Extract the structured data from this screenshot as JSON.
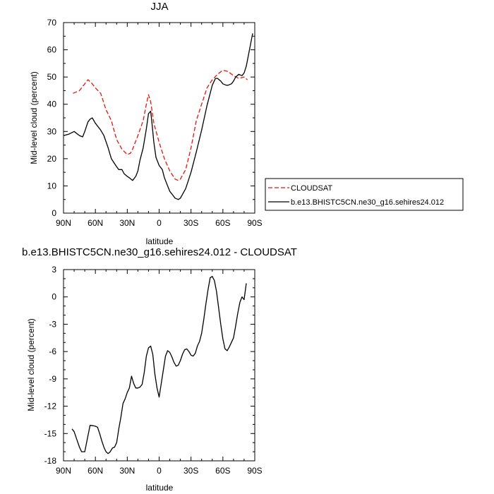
{
  "chart_data": [
    {
      "type": "line",
      "title": "JJA",
      "xlabel": "latitude",
      "ylabel": "Mid-level cloud (percent)",
      "xlim": [
        90,
        -90
      ],
      "ylim": [
        0,
        70
      ],
      "xticks": [
        90,
        60,
        30,
        0,
        -30,
        -60,
        -90
      ],
      "xtick_labels": [
        "90N",
        "60N",
        "30N",
        "0",
        "30S",
        "60S",
        "90S"
      ],
      "yticks": [
        0,
        10,
        20,
        30,
        40,
        50,
        60,
        70
      ],
      "ytick_labels": [
        "0",
        "10",
        "20",
        "30",
        "40",
        "50",
        "60",
        "70"
      ],
      "legend_position": "right",
      "series": [
        {
          "name": "CLOUDSAT",
          "color": "#e8140a",
          "dash": "dashed",
          "x": [
            81,
            75,
            70,
            67,
            64,
            60,
            55,
            50,
            45,
            40,
            35,
            30,
            27,
            25,
            20,
            15,
            12,
            10,
            8,
            5,
            0,
            -5,
            -10,
            -15,
            -18,
            -20,
            -25,
            -30,
            -35,
            -40,
            -45,
            -50,
            -55,
            -60,
            -65,
            -70,
            -75,
            -80,
            -83
          ],
          "y": [
            44,
            45,
            47.5,
            49,
            48,
            46,
            44,
            38,
            34,
            27,
            23.5,
            21.5,
            22,
            23.5,
            28.5,
            34,
            40,
            43.5,
            41,
            33,
            26,
            20,
            15.5,
            12.5,
            12,
            12.5,
            16,
            24,
            34,
            40,
            46,
            49,
            51,
            52.5,
            52,
            50.5,
            49.5,
            50,
            49
          ]
        },
        {
          "name": "b.e13.BHISTC5CN.ne30_g16.sehires24.012",
          "color": "#000000",
          "dash": "solid",
          "x": [
            90,
            85,
            80,
            75,
            72,
            70,
            67,
            65,
            63,
            60,
            55,
            52,
            48,
            45,
            40,
            38,
            35,
            33,
            30,
            28,
            25,
            22,
            20,
            18,
            15,
            12,
            10,
            8,
            7,
            5,
            3,
            0,
            -3,
            -5,
            -8,
            -10,
            -13,
            -15,
            -18,
            -20,
            -25,
            -30,
            -35,
            -40,
            -45,
            -48,
            -50,
            -53,
            -55,
            -58,
            -60,
            -63,
            -65,
            -68,
            -70,
            -72,
            -75,
            -78,
            -80,
            -82,
            -84,
            -86,
            -88
          ],
          "y": [
            28.5,
            29,
            30,
            28.5,
            28,
            30,
            33.5,
            34.5,
            35,
            33,
            30.5,
            28.5,
            24,
            20,
            17,
            16,
            16,
            14.5,
            13.5,
            13,
            12,
            13.5,
            15.5,
            19.5,
            24,
            31,
            36.5,
            37.5,
            34,
            26,
            20.5,
            17.5,
            16,
            13,
            10,
            8,
            6.5,
            5.5,
            5,
            5.5,
            9,
            15,
            22.5,
            30.5,
            39.5,
            44,
            47,
            49.5,
            49.5,
            48.5,
            47.5,
            47,
            47,
            47.5,
            48.5,
            50,
            51,
            50.5,
            51.5,
            54,
            58,
            62,
            66
          ]
        }
      ]
    },
    {
      "type": "line",
      "title": "b.e13.BHISTC5CN.ne30_g16.sehires24.012 - CLOUDSAT",
      "xlabel": "latitude",
      "ylabel": "Mid-level cloud (percent)",
      "xlim": [
        90,
        -90
      ],
      "ylim": [
        -18,
        3
      ],
      "xticks": [
        90,
        60,
        30,
        0,
        -30,
        -60,
        -90
      ],
      "xtick_labels": [
        "90N",
        "60N",
        "30N",
        "0",
        "30S",
        "60S",
        "90S"
      ],
      "yticks": [
        3,
        0,
        -3,
        -6,
        -9,
        -12,
        -15,
        -18
      ],
      "ytick_labels": [
        "3",
        "0",
        "-3",
        "-6",
        "-9",
        "-12",
        "-15",
        "-18"
      ],
      "series": [
        {
          "color": "#000000",
          "dash": "solid",
          "x": [
            82,
            80,
            78,
            75,
            73,
            70,
            65,
            62,
            60,
            58,
            56,
            54,
            52,
            50,
            48,
            46,
            44,
            42,
            40,
            38,
            36,
            34,
            32,
            30,
            28,
            26,
            24,
            22,
            20,
            18,
            16,
            14,
            12,
            10,
            8,
            6,
            4,
            2,
            0,
            -2,
            -4,
            -6,
            -8,
            -10,
            -12,
            -14,
            -16,
            -18,
            -20,
            -22,
            -24,
            -26,
            -28,
            -30,
            -32,
            -34,
            -36,
            -38,
            -40,
            -42,
            -44,
            -46,
            -48,
            -50,
            -52,
            -54,
            -56,
            -58,
            -60,
            -62,
            -64,
            -66,
            -68,
            -70,
            -72,
            -74,
            -76,
            -78,
            -80,
            -82
          ],
          "y": [
            -14.5,
            -14.8,
            -15.5,
            -16.5,
            -17,
            -17,
            -14.1,
            -14.15,
            -14.2,
            -14.3,
            -15,
            -15.8,
            -16.5,
            -17,
            -17.2,
            -17,
            -16.6,
            -16.5,
            -16,
            -14.5,
            -13.2,
            -11.7,
            -11.2,
            -10.5,
            -10,
            -8.7,
            -9.5,
            -10,
            -10,
            -9.9,
            -9.6,
            -8.3,
            -6.5,
            -5.6,
            -5.4,
            -6.3,
            -8.5,
            -10,
            -11,
            -9.5,
            -8,
            -6.5,
            -5.9,
            -6.1,
            -6.6,
            -7.2,
            -7.6,
            -7.5,
            -7,
            -6.3,
            -5.8,
            -5.7,
            -6,
            -6.4,
            -6.5,
            -6.2,
            -5.4,
            -4.9,
            -4,
            -2.5,
            -0.8,
            0.8,
            2.1,
            2.25,
            1.8,
            0.6,
            -1.2,
            -3,
            -4.6,
            -5.7,
            -5.9,
            -5.5,
            -5,
            -4.5,
            -3.2,
            -1.8,
            -0.6,
            0,
            -0.3,
            1.5
          ]
        }
      ]
    }
  ]
}
